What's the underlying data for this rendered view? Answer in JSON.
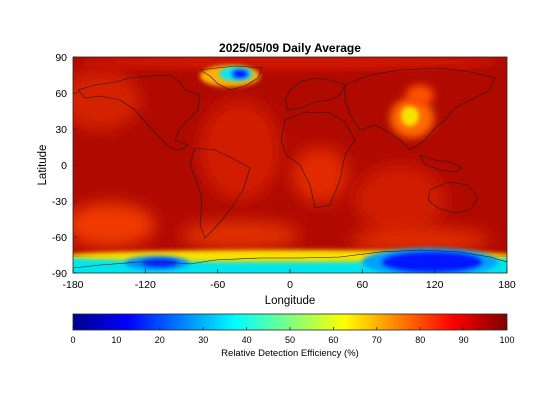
{
  "chart": {
    "title": "2025/05/09 Daily Average",
    "xlabel": "Longitude",
    "ylabel": "Latitude",
    "x_ticks": [
      "-180",
      "-120",
      "-60",
      "0",
      "60",
      "120",
      "180"
    ],
    "y_ticks": [
      "90",
      "60",
      "30",
      "0",
      "-30",
      "-60",
      "-90"
    ],
    "colorbar": {
      "label": "Relative Detection Efficiency (%)",
      "ticks": [
        "0",
        "10",
        "20",
        "30",
        "40",
        "50",
        "60",
        "70",
        "80",
        "90",
        "100"
      ],
      "range": [
        0,
        100
      ],
      "colormap": "jet"
    }
  },
  "chart_data": {
    "type": "heatmap",
    "title": "2025/05/09 Daily Average",
    "xlabel": "Longitude",
    "ylabel": "Latitude",
    "xlim": [
      -180,
      180
    ],
    "ylim": [
      -90,
      90
    ],
    "x_ticks": [
      -180,
      -120,
      -60,
      0,
      60,
      120,
      180
    ],
    "y_ticks": [
      90,
      60,
      30,
      0,
      -30,
      -60,
      -90
    ],
    "value_range": [
      0,
      100
    ],
    "background_value": 93,
    "features": [
      {
        "feature": "Greenland low efficiency",
        "lon": -42,
        "lat": 73,
        "value": 25
      },
      {
        "feature": "Central Asia high-efficiency dip",
        "lon": 103,
        "lat": 42,
        "value": 65
      },
      {
        "feature": "East Antarctica low efficiency",
        "lon": 110,
        "lat": -79,
        "value": 12
      },
      {
        "feature": "West Antarctica low efficiency",
        "lon": -108,
        "lat": -82,
        "value": 18
      },
      {
        "feature": "Antarctic coast band",
        "lon": 0,
        "lat": -78,
        "value": 60
      },
      {
        "feature": "Southern Pacific reduced band",
        "lon": -150,
        "lat": -50,
        "value": 80
      },
      {
        "feature": "Tropical Africa reduced",
        "lon": 20,
        "lat": 5,
        "value": 82
      }
    ]
  }
}
